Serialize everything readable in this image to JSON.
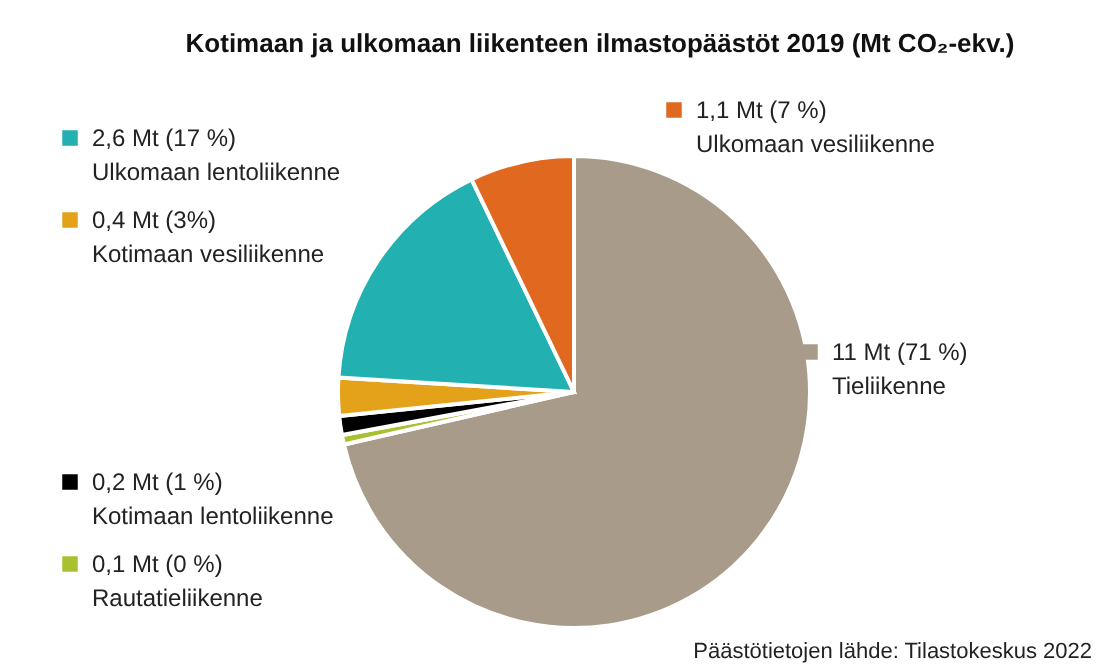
{
  "chart_data": {
    "type": "pie",
    "title": "Kotimaan ja ulkomaan liikenteen ilmastopäästöt 2019 (Mt CO₂-ekv.)",
    "categories": [
      "Tieliikenne",
      "Rautatieliikenne",
      "Kotimaan lentoliikenne",
      "Kotimaan vesiliikenne",
      "Ulkomaan lentoliikenne",
      "Ulkomaan vesiliikenne"
    ],
    "values": [
      11,
      0.1,
      0.2,
      0.4,
      2.6,
      1.1
    ],
    "colors": [
      "#a89b89",
      "#a9c131",
      "#000000",
      "#e3a21a",
      "#22b0b0",
      "#e0691f"
    ],
    "value_labels": [
      "11 Mt (71 %)",
      "0,1 Mt (0 %)",
      "0,2 Mt (1 %)",
      "0,4 Mt (3%)",
      "2,6 Mt (17 %)",
      "1,1 Mt (7 %)"
    ],
    "legend": "left",
    "annotations": [
      "Päästötietojen lähde: Tilastokeskus 2022"
    ]
  }
}
